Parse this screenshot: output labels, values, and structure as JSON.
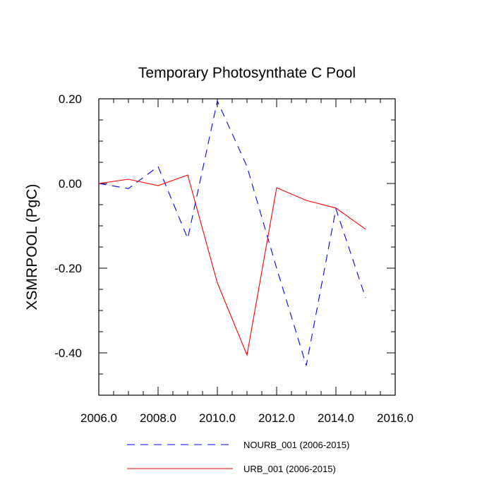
{
  "chart_data": {
    "type": "line",
    "title": "Temporary Photosynthate C Pool",
    "xlabel": "",
    "ylabel": "XSMRPOOL  (PgC)",
    "xlim": [
      2006,
      2016
    ],
    "ylim": [
      -0.5,
      0.2
    ],
    "x_ticks": [
      2006,
      2008,
      2010,
      2012,
      2014,
      2016
    ],
    "x_tick_labels": [
      "2006.0",
      "2008.0",
      "2010.0",
      "2012.0",
      "2014.0",
      "2016.0"
    ],
    "y_ticks": [
      0.2,
      0.0,
      -0.2,
      -0.4
    ],
    "y_tick_labels": [
      "0.20",
      "0.00",
      "-0.20",
      "-0.40"
    ],
    "x": [
      2006,
      2007,
      2008,
      2009,
      2010,
      2011,
      2012,
      2013,
      2014,
      2015
    ],
    "series": [
      {
        "name": "NOURB_001 (2006-2015)",
        "color": "#0000ff",
        "line_style": "dashed",
        "values": [
          0.0,
          -0.012,
          0.04,
          -0.13,
          0.195,
          0.04,
          -0.2,
          -0.43,
          -0.06,
          -0.27
        ]
      },
      {
        "name": "URB_001 (2006-2015)",
        "color": "#ff0000",
        "line_style": "solid",
        "values": [
          0.0,
          0.01,
          -0.005,
          0.02,
          -0.235,
          -0.405,
          -0.01,
          -0.04,
          -0.058,
          -0.108
        ]
      }
    ],
    "grid": false,
    "legend_position": "bottom"
  }
}
